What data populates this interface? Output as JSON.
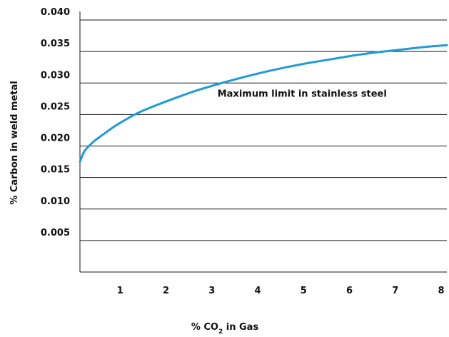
{
  "chart_data": {
    "type": "line",
    "title": "",
    "xlabel": {
      "prefix": "% CO",
      "subscript": "2",
      "suffix": " in Gas"
    },
    "ylabel": "% Carbon in weld metal",
    "xlim": [
      0,
      8
    ],
    "ylim": [
      0,
      0.04
    ],
    "x_ticks": [
      1,
      2,
      3,
      4,
      5,
      6,
      7,
      8
    ],
    "x_tick_labels": [
      "1",
      "2",
      "3",
      "4",
      "5",
      "6",
      "7",
      "8"
    ],
    "y_ticks": [
      0.005,
      0.01,
      0.015,
      0.02,
      0.025,
      0.03,
      0.035,
      0.04
    ],
    "y_tick_labels": [
      "0.005",
      "0.010",
      "0.015",
      "0.020",
      "0.025",
      "0.030",
      "0.035",
      "0.040"
    ],
    "grid": "horizontal",
    "annotation": {
      "text": "Maximum limit in stainless steel",
      "x": 3.0,
      "y": 0.0278
    },
    "series": [
      {
        "color": "#1f9bd7",
        "x": [
          0.0,
          0.1,
          0.3,
          0.5,
          0.75,
          1.0,
          1.25,
          1.5,
          2.0,
          2.5,
          3.0,
          3.5,
          4.0,
          4.5,
          5.0,
          5.5,
          6.0,
          6.5,
          7.0,
          7.5,
          8.0
        ],
        "y": [
          0.0175,
          0.0192,
          0.0207,
          0.0218,
          0.0231,
          0.0242,
          0.0252,
          0.026,
          0.0274,
          0.0287,
          0.0298,
          0.0308,
          0.0317,
          0.0325,
          0.0332,
          0.0338,
          0.0344,
          0.0349,
          0.0353,
          0.0357,
          0.036
        ]
      }
    ]
  }
}
